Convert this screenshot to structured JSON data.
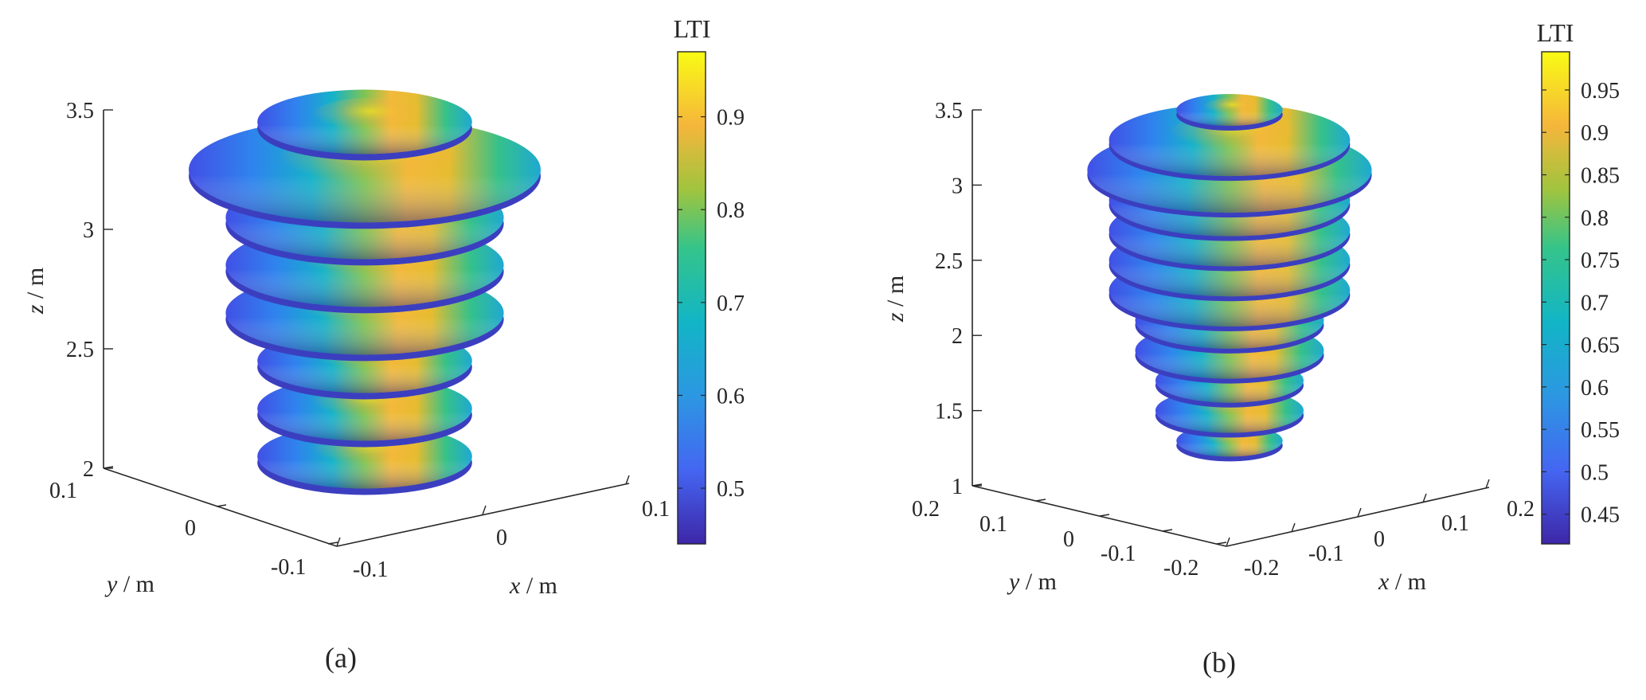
{
  "chart_data": [
    {
      "type": "surface3d",
      "panel_label": "(a)",
      "colorbar": {
        "title": "LTI",
        "range": [
          0.44,
          0.97
        ],
        "ticks": [
          "0.5",
          "0.6",
          "0.7",
          "0.8",
          "0.9"
        ]
      },
      "axes": {
        "x": {
          "label_var": "x",
          "label_unit": "/ m",
          "ticks": [
            "-0.1",
            "0",
            "0.1"
          ]
        },
        "y": {
          "label_var": "y",
          "label_unit": "/ m",
          "ticks": [
            "0.1",
            "0",
            "-0.1"
          ]
        },
        "z": {
          "label_var": "z",
          "label_unit": "/ m",
          "ticks": [
            "2",
            "2.5",
            "3",
            "3.5"
          ],
          "range": [
            2,
            3.5
          ]
        }
      },
      "disks": [
        {
          "z": 2.05,
          "radius": 0.061
        },
        {
          "z": 2.25,
          "radius": 0.061
        },
        {
          "z": 2.45,
          "radius": 0.061
        },
        {
          "z": 2.65,
          "radius": 0.079
        },
        {
          "z": 2.85,
          "radius": 0.079
        },
        {
          "z": 3.05,
          "radius": 0.079
        },
        {
          "z": 3.25,
          "radius": 0.1
        },
        {
          "z": 3.45,
          "radius": 0.061
        }
      ]
    },
    {
      "type": "surface3d",
      "panel_label": "(b)",
      "colorbar": {
        "title": "LTI",
        "range": [
          0.415,
          0.995
        ],
        "ticks": [
          "0.45",
          "0.5",
          "0.55",
          "0.6",
          "0.65",
          "0.7",
          "0.75",
          "0.8",
          "0.85",
          "0.9",
          "0.95"
        ]
      },
      "axes": {
        "x": {
          "label_var": "x",
          "label_unit": "/ m",
          "ticks": [
            "-0.2",
            "-0.1",
            "0",
            "0.1",
            "0.2"
          ]
        },
        "y": {
          "label_var": "y",
          "label_unit": "/ m",
          "ticks": [
            "0.2",
            "0.1",
            "0",
            "-0.1",
            "-0.2"
          ]
        },
        "z": {
          "label_var": "z",
          "label_unit": "/ m",
          "ticks": [
            "1",
            "1.5",
            "2",
            "2.5",
            "3",
            "3.5"
          ],
          "range": [
            1,
            3.5
          ]
        }
      },
      "disks": [
        {
          "z": 1.3,
          "radius": 0.071
        },
        {
          "z": 1.5,
          "radius": 0.099
        },
        {
          "z": 1.7,
          "radius": 0.099
        },
        {
          "z": 1.9,
          "radius": 0.126
        },
        {
          "z": 2.1,
          "radius": 0.126
        },
        {
          "z": 2.3,
          "radius": 0.161
        },
        {
          "z": 2.5,
          "radius": 0.161
        },
        {
          "z": 2.7,
          "radius": 0.161
        },
        {
          "z": 2.9,
          "radius": 0.161
        },
        {
          "z": 3.1,
          "radius": 0.19
        },
        {
          "z": 3.3,
          "radius": 0.161
        },
        {
          "z": 3.5,
          "radius": 0.071
        }
      ]
    }
  ]
}
